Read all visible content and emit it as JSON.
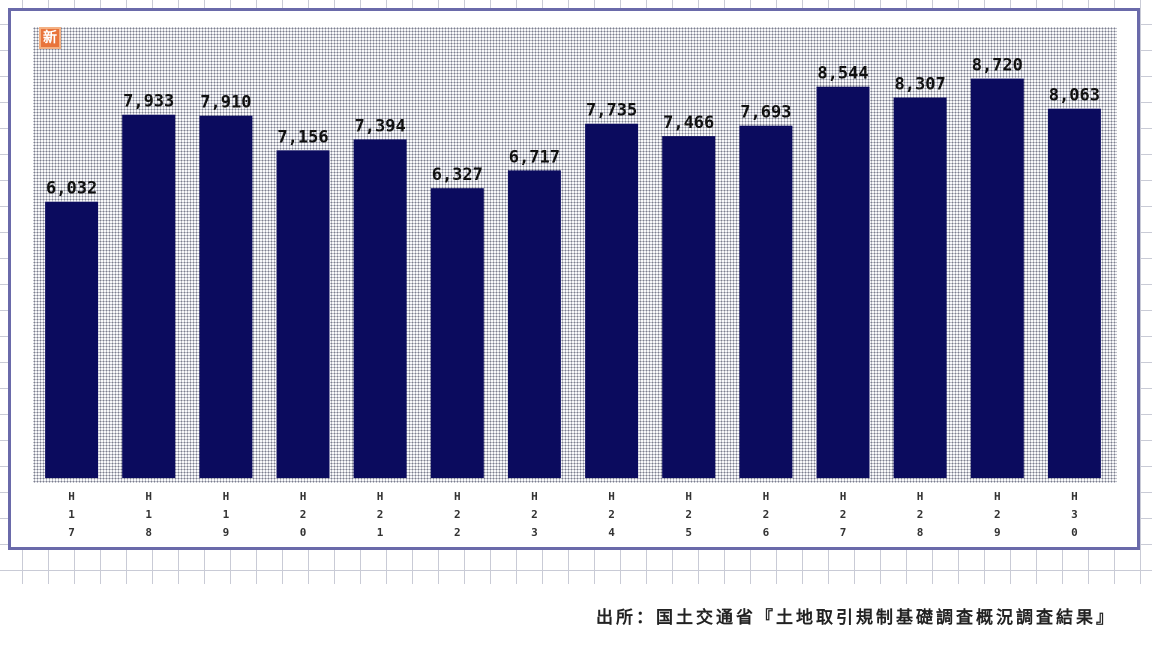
{
  "chart_data": {
    "type": "bar",
    "categories": [
      "H17",
      "H18",
      "H19",
      "H20",
      "H21",
      "H22",
      "H23",
      "H24",
      "H25",
      "H26",
      "H27",
      "H28",
      "H29",
      "H30"
    ],
    "values": [
      6032,
      7933,
      7910,
      7156,
      7394,
      6327,
      6717,
      7735,
      7466,
      7693,
      8544,
      8307,
      8720,
      8063
    ],
    "value_labels": [
      "6,032",
      "7,933",
      "7,910",
      "7,156",
      "7,394",
      "6,327",
      "6,717",
      "7,735",
      "7,466",
      "7,693",
      "8,544",
      "8,307",
      "8,720",
      "8,063"
    ],
    "ylim": [
      0,
      10000
    ],
    "grid": false,
    "legend": "none",
    "bar_color": "#0b0b5e"
  },
  "badge_text": "新",
  "source": "出所：国土交通省『土地取引規制基礎調査概況調査結果』",
  "colors": {
    "bar": "#0b0b5e",
    "frame": "#6a6aaa",
    "badge": "#e8743b"
  }
}
